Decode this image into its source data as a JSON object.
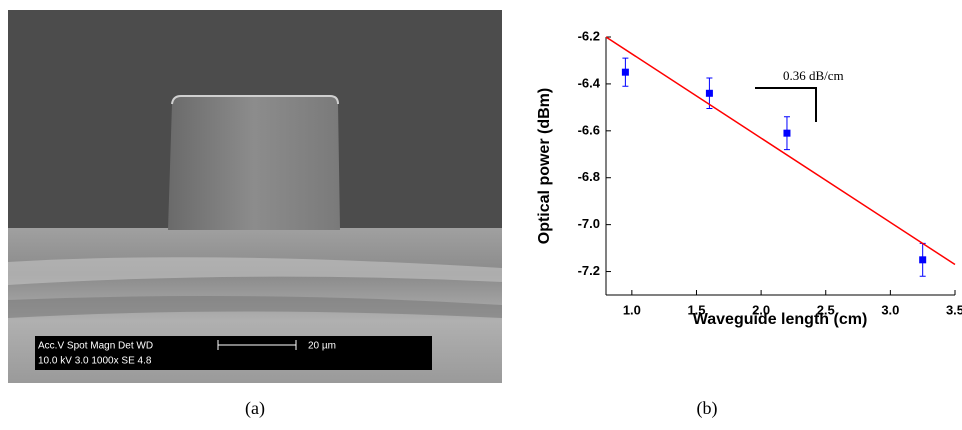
{
  "figure": {
    "panel_labels": [
      "(a)",
      "(b)"
    ],
    "sem_info": {
      "line1": "Acc.V  Spot Magn   Det  WD",
      "line2": "10.0 kV 3.0  1000x   SE   4.8",
      "scale_label": "20 µm"
    }
  },
  "chart_data": {
    "type": "scatter",
    "xlabel": "Waveguide length (cm)",
    "ylabel": "Optical power (dBm)",
    "annotation": "0.36 dB/cm",
    "xlim": [
      0.8,
      3.5
    ],
    "ylim": [
      -7.3,
      -6.2
    ],
    "xticks": [
      {
        "value": 1,
        "label": "1.0"
      },
      1.5,
      {
        "value": 2,
        "label": "2.0"
      },
      2.5,
      {
        "value": 3,
        "label": "3.0"
      },
      3.5
    ],
    "yticks": [
      -6.2,
      -6.4,
      -6.6,
      -6.8,
      {
        "value": -7,
        "label": "-7.0"
      },
      -7.2
    ],
    "series": [
      {
        "type": "scatter",
        "color": "#0000ff",
        "x": [
          0.95,
          1.6,
          2.2,
          3.25
        ],
        "values": [
          -6.35,
          -6.44,
          -6.61,
          -7.15
        ],
        "errors": [
          0.06,
          0.065,
          0.07,
          0.07
        ]
      },
      {
        "type": "line",
        "color": "#ff0000",
        "x": [
          0.8,
          3.5
        ],
        "values": [
          -6.2,
          -7.17
        ]
      }
    ]
  }
}
